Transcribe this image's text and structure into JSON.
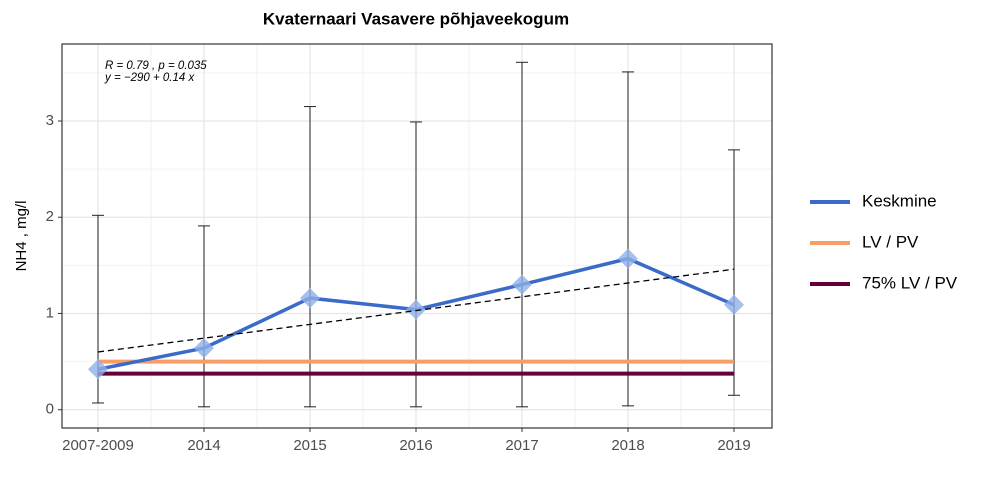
{
  "chart_data": {
    "type": "line",
    "title": "Kvaternaari Vasavere põhjaveekogum",
    "y_label": "NH4 , mg/l",
    "categories": [
      "2007-2009",
      "2014",
      "2015",
      "2016",
      "2017",
      "2018",
      "2019"
    ],
    "series": [
      {
        "name": "Keskmine",
        "color": "#3a6bc9",
        "marker_color": "#8eb0e8",
        "values": [
          0.42,
          0.64,
          1.16,
          1.04,
          1.3,
          1.57,
          1.09
        ],
        "error_low": [
          0.07,
          0.03,
          0.03,
          0.03,
          0.03,
          0.04,
          0.15
        ],
        "error_high": [
          2.02,
          1.91,
          3.15,
          2.99,
          3.61,
          3.51,
          2.7
        ]
      },
      {
        "name": "LV / PV",
        "color": "#f79d68",
        "values": [
          0.5,
          0.5,
          0.5,
          0.5,
          0.5,
          0.5,
          0.5
        ]
      },
      {
        "name": "75% LV / PV",
        "color": "#67003a",
        "values": [
          0.375,
          0.375,
          0.375,
          0.375,
          0.375,
          0.375,
          0.375
        ]
      }
    ],
    "trend": {
      "start": 0.6,
      "end": 1.46
    },
    "annotations": [
      "R = 0.79 , p = 0.035",
      "y = −290 + 0.14 x"
    ],
    "ylim": [
      -0.19,
      3.8
    ],
    "yticks": [
      0,
      1,
      2,
      3
    ],
    "grid": true,
    "legend": "right"
  }
}
